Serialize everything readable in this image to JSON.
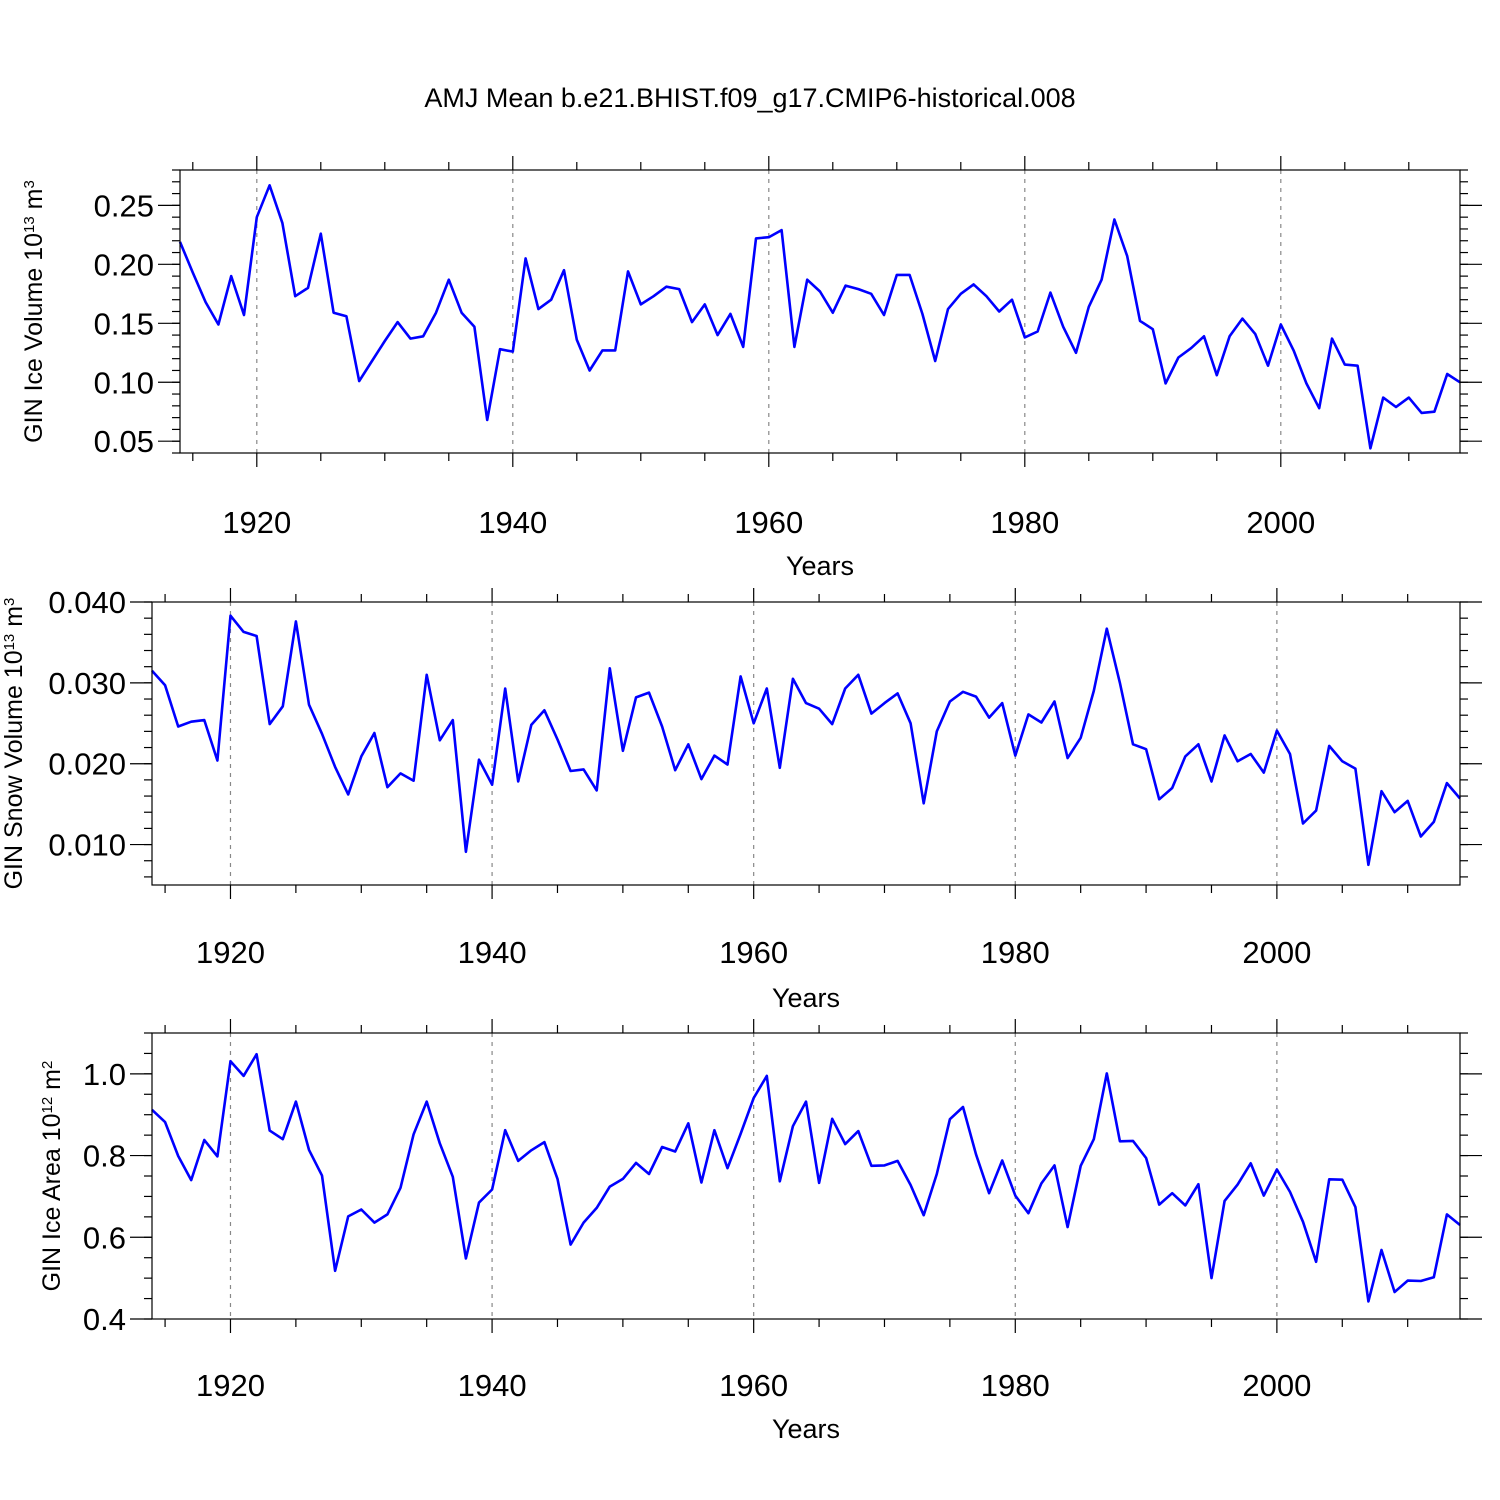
{
  "title": "AMJ Mean b.e21.BHIST.f09_g17.CMIP6-historical.008",
  "chart_data": [
    {
      "type": "line",
      "ylabel": "GIN Ice Volume 10",
      "ylabel_exp": "13",
      "ylabel_unit": " m",
      "ylabel_unit_exp": "3",
      "xlabel": "Years",
      "xlim": [
        1914,
        2014
      ],
      "ylim": [
        0.04,
        0.28
      ],
      "xticks": [
        1920,
        1940,
        1960,
        1980,
        2000
      ],
      "xtick_labels": [
        "1920",
        "1940",
        "1960",
        "1980",
        "2000"
      ],
      "xgrid": [
        1920,
        1940,
        1960,
        1980,
        2000
      ],
      "yticks": [
        0.05,
        0.1,
        0.15,
        0.2,
        0.25
      ],
      "ytick_labels": [
        "0.05",
        "0.10",
        "0.15",
        "0.20",
        "0.25"
      ],
      "yminor": 0.01,
      "series": [
        {
          "name": "GIN Ice Volume",
          "color": "#0000ff",
          "x_start": 1914,
          "values": [
            0.219,
            0.193,
            0.168,
            0.149,
            0.19,
            0.157,
            0.24,
            0.267,
            0.235,
            0.173,
            0.18,
            0.226,
            0.159,
            0.156,
            0.101,
            0.118,
            0.135,
            0.151,
            0.137,
            0.139,
            0.159,
            0.187,
            0.159,
            0.147,
            0.068,
            0.128,
            0.126,
            0.205,
            0.162,
            0.17,
            0.195,
            0.136,
            0.11,
            0.127,
            0.127,
            0.194,
            0.166,
            0.173,
            0.181,
            0.179,
            0.151,
            0.166,
            0.14,
            0.158,
            0.13,
            0.222,
            0.223,
            0.229,
            0.13,
            0.187,
            0.177,
            0.159,
            0.182,
            0.179,
            0.175,
            0.157,
            0.191,
            0.191,
            0.158,
            0.118,
            0.162,
            0.175,
            0.183,
            0.173,
            0.16,
            0.17,
            0.138,
            0.143,
            0.176,
            0.147,
            0.125,
            0.164,
            0.187,
            0.238,
            0.207,
            0.152,
            0.145,
            0.099,
            0.121,
            0.129,
            0.139,
            0.106,
            0.139,
            0.154,
            0.141,
            0.114,
            0.149,
            0.127,
            0.099,
            0.078,
            0.137,
            0.115,
            0.114,
            0.044,
            0.087,
            0.079,
            0.087,
            0.074,
            0.075,
            0.107,
            0.1
          ]
        }
      ]
    },
    {
      "type": "line",
      "ylabel": "GIN Snow Volume 10",
      "ylabel_exp": "13",
      "ylabel_unit": " m",
      "ylabel_unit_exp": "3",
      "xlabel": "Years",
      "xlim": [
        1914,
        2014
      ],
      "ylim": [
        0.005,
        0.04
      ],
      "xticks": [
        1920,
        1940,
        1960,
        1980,
        2000
      ],
      "xtick_labels": [
        "1920",
        "1940",
        "1960",
        "1980",
        "2000"
      ],
      "xgrid": [
        1920,
        1940,
        1960,
        1980,
        2000
      ],
      "yticks": [
        0.01,
        0.02,
        0.03,
        0.04
      ],
      "ytick_labels": [
        "0.010",
        "0.020",
        "0.030",
        "0.040"
      ],
      "yminor": 0.002,
      "series": [
        {
          "name": "GIN Snow Volume",
          "color": "#0000ff",
          "x_start": 1914,
          "values": [
            0.0315,
            0.0297,
            0.0246,
            0.0252,
            0.0254,
            0.0204,
            0.0383,
            0.0363,
            0.0358,
            0.0249,
            0.0271,
            0.0376,
            0.0273,
            0.0237,
            0.0196,
            0.0162,
            0.0209,
            0.0238,
            0.0171,
            0.0188,
            0.0179,
            0.031,
            0.0229,
            0.0254,
            0.0091,
            0.0205,
            0.0174,
            0.0293,
            0.0178,
            0.0248,
            0.0266,
            0.023,
            0.0191,
            0.0193,
            0.0167,
            0.0318,
            0.0216,
            0.0282,
            0.0288,
            0.0246,
            0.0192,
            0.0224,
            0.0181,
            0.021,
            0.0199,
            0.0308,
            0.025,
            0.0293,
            0.0195,
            0.0305,
            0.0275,
            0.0268,
            0.0249,
            0.0293,
            0.031,
            0.0262,
            0.0275,
            0.0287,
            0.025,
            0.0151,
            0.024,
            0.0277,
            0.0289,
            0.0283,
            0.0257,
            0.0275,
            0.021,
            0.0261,
            0.0251,
            0.0277,
            0.0207,
            0.0232,
            0.029,
            0.0367,
            0.03,
            0.0224,
            0.0218,
            0.0156,
            0.017,
            0.0209,
            0.0224,
            0.0178,
            0.0235,
            0.0203,
            0.0212,
            0.0189,
            0.0241,
            0.0212,
            0.0126,
            0.0142,
            0.0222,
            0.0203,
            0.0194,
            0.0075,
            0.0166,
            0.014,
            0.0154,
            0.011,
            0.0128,
            0.0176,
            0.0157
          ]
        }
      ]
    },
    {
      "type": "line",
      "ylabel": "GIN Ice Area 10",
      "ylabel_exp": "12",
      "ylabel_unit": " m",
      "ylabel_unit_exp": "2",
      "xlabel": "Years",
      "xlim": [
        1914,
        2014
      ],
      "ylim": [
        0.4,
        1.1
      ],
      "xticks": [
        1920,
        1940,
        1960,
        1980,
        2000
      ],
      "xtick_labels": [
        "1920",
        "1940",
        "1960",
        "1980",
        "2000"
      ],
      "xgrid": [
        1920,
        1940,
        1960,
        1980,
        2000
      ],
      "yticks": [
        0.4,
        0.6,
        0.8,
        1.0
      ],
      "ytick_labels": [
        "0.4",
        "0.6",
        "0.8",
        "1.0"
      ],
      "yminor": 0.05,
      "series": [
        {
          "name": "GIN Ice Area",
          "color": "#0000ff",
          "x_start": 1914,
          "values": [
            0.912,
            0.882,
            0.799,
            0.74,
            0.838,
            0.798,
            1.031,
            0.995,
            1.048,
            0.861,
            0.84,
            0.932,
            0.814,
            0.751,
            0.518,
            0.651,
            0.668,
            0.636,
            0.656,
            0.721,
            0.852,
            0.932,
            0.83,
            0.748,
            0.548,
            0.685,
            0.717,
            0.862,
            0.787,
            0.813,
            0.833,
            0.743,
            0.582,
            0.636,
            0.672,
            0.724,
            0.743,
            0.782,
            0.755,
            0.821,
            0.81,
            0.879,
            0.734,
            0.862,
            0.769,
            0.853,
            0.941,
            0.995,
            0.737,
            0.872,
            0.932,
            0.733,
            0.89,
            0.828,
            0.86,
            0.775,
            0.776,
            0.787,
            0.728,
            0.654,
            0.755,
            0.889,
            0.919,
            0.803,
            0.708,
            0.788,
            0.702,
            0.659,
            0.732,
            0.776,
            0.625,
            0.775,
            0.84,
            1.001,
            0.835,
            0.836,
            0.794,
            0.68,
            0.708,
            0.678,
            0.73,
            0.5,
            0.689,
            0.729,
            0.781,
            0.702,
            0.766,
            0.711,
            0.638,
            0.54,
            0.742,
            0.741,
            0.674,
            0.443,
            0.569,
            0.466,
            0.494,
            0.493,
            0.502,
            0.656,
            0.63
          ]
        }
      ]
    }
  ]
}
